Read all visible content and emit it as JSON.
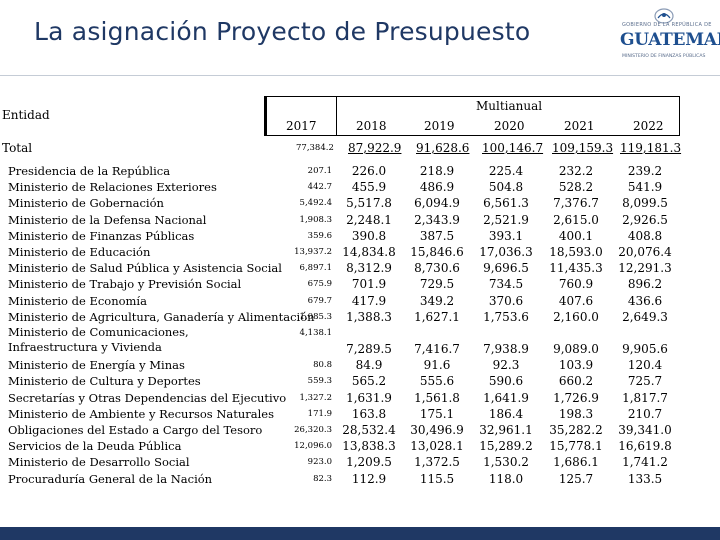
{
  "title": "La asignación Proyecto de Presupuesto",
  "logo": {
    "top_text": "GOBIERNO DE LA REPÚBLICA DE",
    "main_text": "GUATEMALA",
    "bottom_text": "MINISTERIO DE FINANZAS PÚBLICAS",
    "colors": {
      "blue": "#1e4f8f",
      "gray": "#5a6d8c"
    }
  },
  "table": {
    "entity_header": "Entidad",
    "multianual_header": "Multianual",
    "years": [
      "2017",
      "2018",
      "2019",
      "2020",
      "2021",
      "2022"
    ],
    "total_label": "Total",
    "totals": [
      "77,384.2",
      "87,922.9",
      "91,628.6",
      "100,146.7",
      "109,159.3",
      "119,181.3"
    ],
    "rows": [
      {
        "name": "Presidencia de la República",
        "values": [
          "207.1",
          "226.0",
          "218.9",
          "225.4",
          "232.2",
          "239.2"
        ]
      },
      {
        "name": "Ministerio de Relaciones Exteriores",
        "values": [
          "442.7",
          "455.9",
          "486.9",
          "504.8",
          "528.2",
          "541.9"
        ]
      },
      {
        "name": "Ministerio de Gobernación",
        "values": [
          "5,492.4",
          "5,517.8",
          "6,094.9",
          "6,561.3",
          "7,376.7",
          "8,099.5"
        ]
      },
      {
        "name": "Ministerio de la Defensa Nacional",
        "values": [
          "1,908.3",
          "2,248.1",
          "2,343.9",
          "2,521.9",
          "2,615.0",
          "2,926.5"
        ]
      },
      {
        "name": "Ministerio de Finanzas Públicas",
        "values": [
          "359.6",
          "390.8",
          "387.5",
          "393.1",
          "400.1",
          "408.8"
        ]
      },
      {
        "name": "Ministerio de Educación",
        "values": [
          "13,937.2",
          "14,834.8",
          "15,846.6",
          "17,036.3",
          "18,593.0",
          "20,076.4"
        ]
      },
      {
        "name": "Ministerio de Salud Pública y Asistencia Social",
        "values": [
          "6,897.1",
          "8,312.9",
          "8,730.6",
          "9,696.5",
          "11,435.3",
          "12,291.3"
        ]
      },
      {
        "name": "Ministerio de Trabajo y Previsión Social",
        "values": [
          "675.9",
          "701.9",
          "729.5",
          "734.5",
          "760.9",
          "896.2"
        ]
      },
      {
        "name": "Ministerio de Economía",
        "values": [
          "679.7",
          "417.9",
          "349.2",
          "370.6",
          "407.6",
          "436.6"
        ]
      },
      {
        "name": "Ministerio de Agricultura, Ganadería y Alimentación",
        "values": [
          "1,085.3",
          "1,388.3",
          "1,627.1",
          "1,753.6",
          "2,160.0",
          "2,649.3"
        ]
      },
      {
        "name": "Ministerio de Comunicaciones, Infraestructura y Vivienda",
        "values": [
          "4,138.1",
          "7,289.5",
          "7,416.7",
          "7,938.9",
          "9,089.0",
          "9,905.6"
        ]
      },
      {
        "name": "Ministerio de Energía y Minas",
        "values": [
          "80.8",
          "84.9",
          "91.6",
          "92.3",
          "103.9",
          "120.4"
        ]
      },
      {
        "name": "Ministerio de Cultura y Deportes",
        "values": [
          "559.3",
          "565.2",
          "555.6",
          "590.6",
          "660.2",
          "725.7"
        ]
      },
      {
        "name": "Secretarías y Otras Dependencias del Ejecutivo",
        "values": [
          "1,327.2",
          "1,631.9",
          "1,561.8",
          "1,641.9",
          "1,726.9",
          "1,817.7"
        ]
      },
      {
        "name": "Ministerio de Ambiente y Recursos Naturales",
        "values": [
          "171.9",
          "163.8",
          "175.1",
          "186.4",
          "198.3",
          "210.7"
        ]
      },
      {
        "name": "Obligaciones del Estado a Cargo del Tesoro",
        "values": [
          "26,320.3",
          "28,532.4",
          "30,496.9",
          "32,961.1",
          "35,282.2",
          "39,341.0"
        ]
      },
      {
        "name": "Servicios de la Deuda Pública",
        "values": [
          "12,096.0",
          "13,838.3",
          "13,028.1",
          "15,289.2",
          "15,778.1",
          "16,619.8"
        ]
      },
      {
        "name": "Ministerio de Desarrollo Social",
        "values": [
          "923.0",
          "1,209.5",
          "1,372.5",
          "1,530.2",
          "1,686.1",
          "1,741.2"
        ]
      },
      {
        "name": "Procuraduría General de la Nación",
        "values": [
          "82.3",
          "112.9",
          "115.5",
          "118.0",
          "125.7",
          "133.5"
        ]
      }
    ]
  },
  "colors": {
    "title": "#1f3864",
    "bottom_bar": "#1f3864"
  }
}
